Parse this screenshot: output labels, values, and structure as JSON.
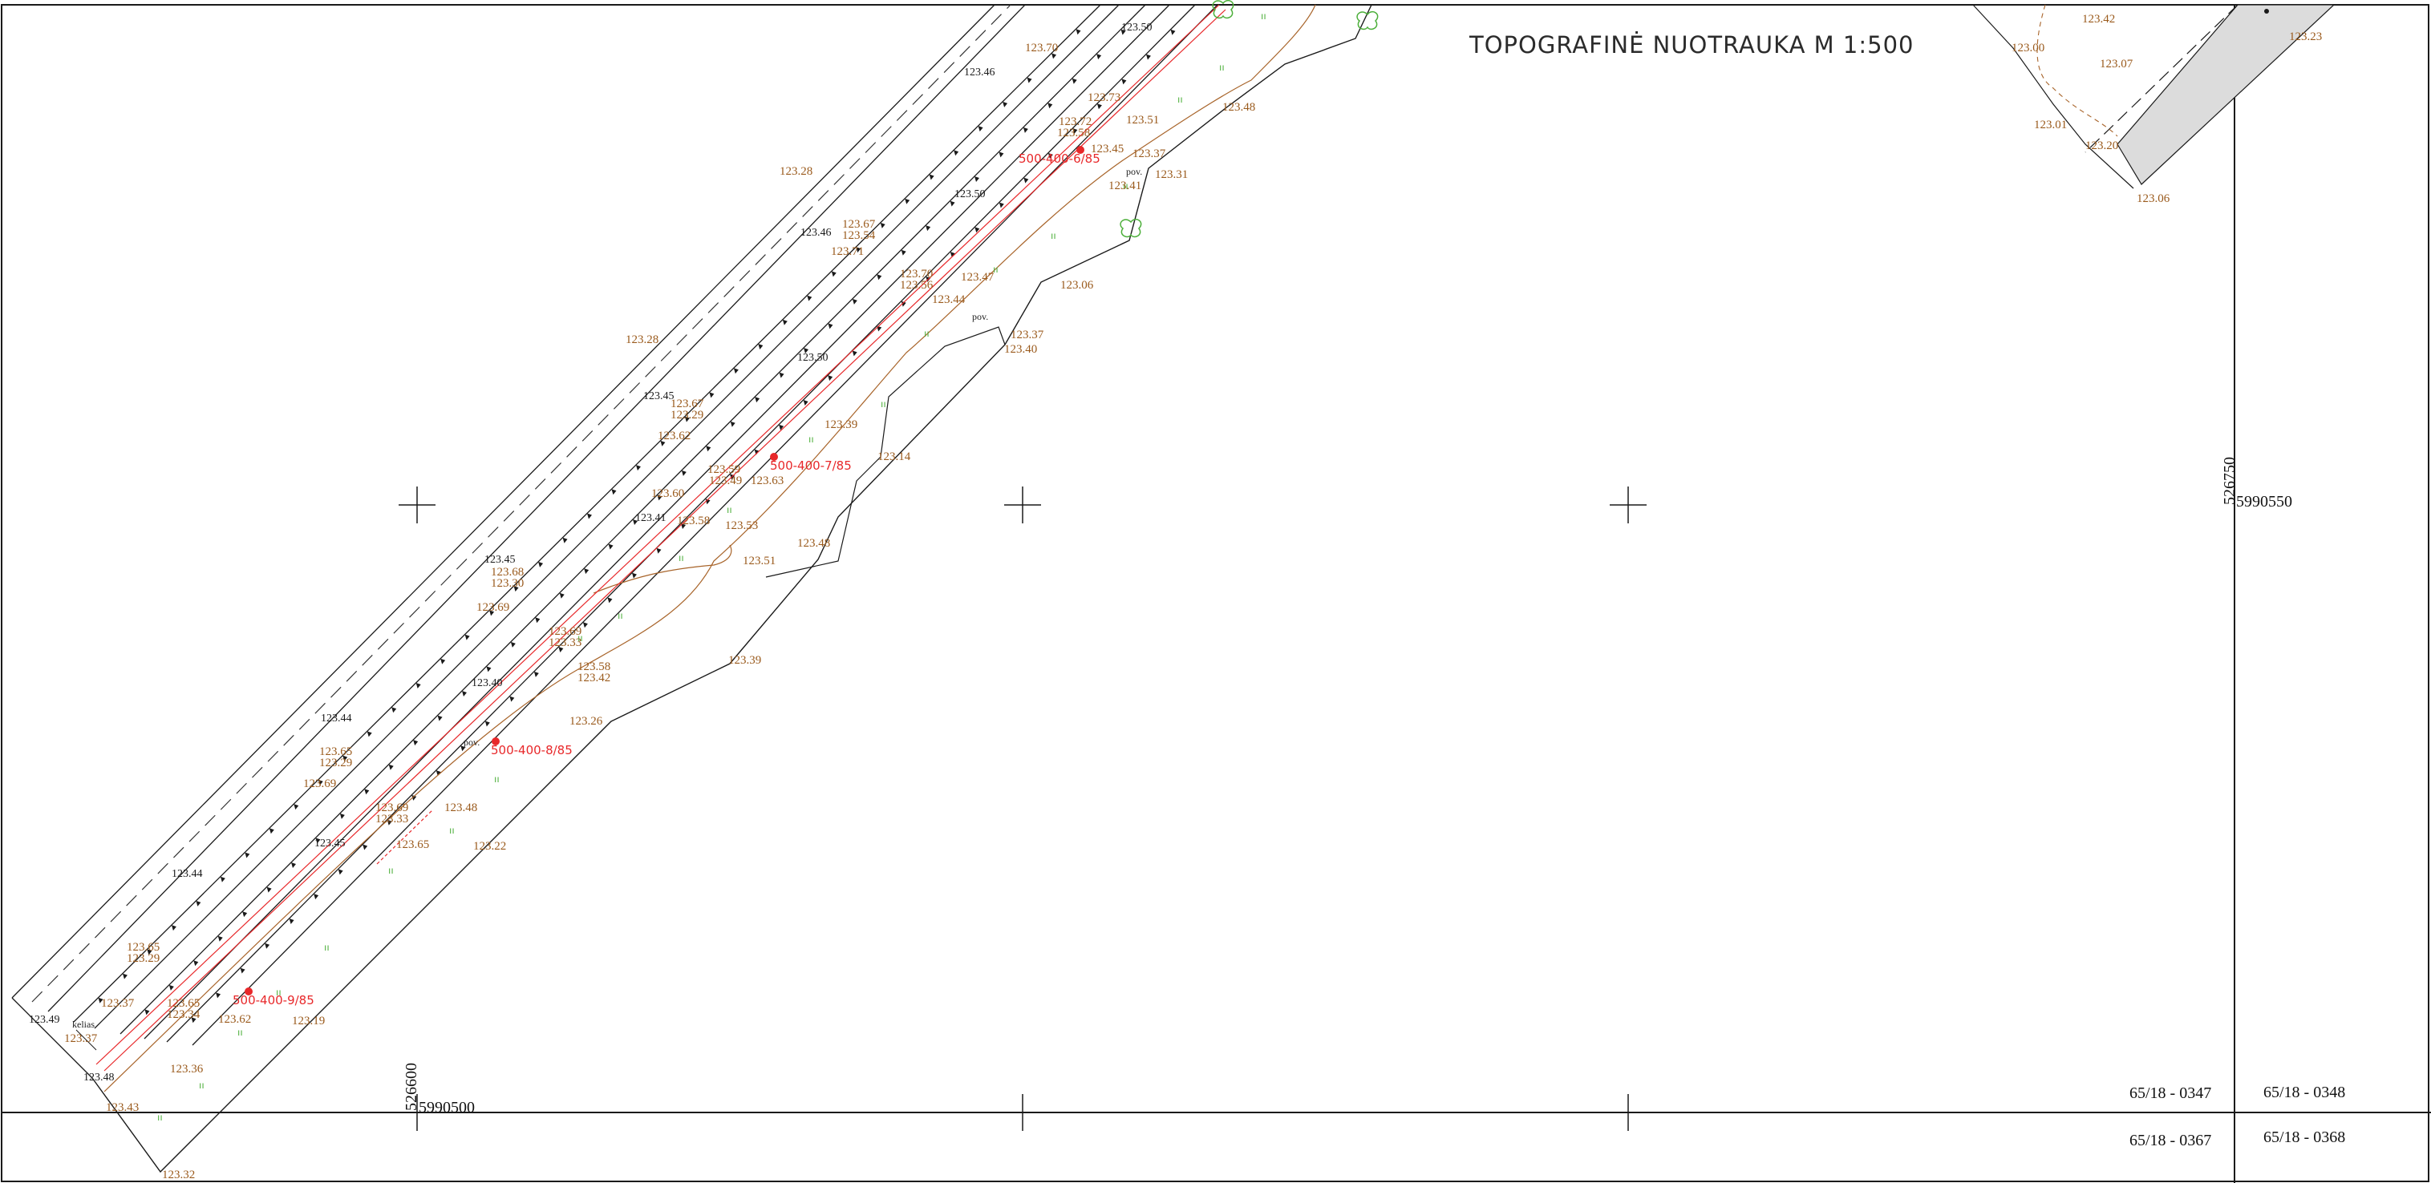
{
  "title": "TOPOGRAFINĖ NUOTRAUKA M 1:500",
  "colors": {
    "ink": "#1a1a1a",
    "elevation": "#9a5a1c",
    "survey": "#e8282a",
    "vegetation": "#4caf3a",
    "hatch": "#dcdcdc"
  },
  "grid": {
    "northing_label": "5990550",
    "easting_label": "526750",
    "bottom_northing": "5990500",
    "bottom_easting": "526600"
  },
  "sheets": [
    "65/18 - 0347",
    "65/18 - 0348",
    "65/18 - 0367",
    "65/18 - 0368"
  ],
  "survey_points": [
    "500-400-6/85",
    "500-400-7/85",
    "500-400-8/85",
    "500-400-9/85"
  ],
  "labels": {
    "road": "kelias",
    "pole": "pov."
  },
  "elevations_brown": [
    "123.28",
    "123.28",
    "123.70",
    "123.72",
    "123.58",
    "123.73",
    "123.51",
    "123.48",
    "123.45",
    "123.37",
    "123.41",
    "123.31",
    "123.67",
    "123.54",
    "123.71",
    "123.70",
    "123.56",
    "123.47",
    "123.44",
    "123.06",
    "123.37",
    "123.40",
    "123.67",
    "123.29",
    "123.39",
    "123.14",
    "123.62",
    "123.59",
    "123.49",
    "123.63",
    "123.60",
    "123.58",
    "123.53",
    "123.51",
    "123.48",
    "123.68",
    "123.30",
    "123.69",
    "123.69",
    "123.33",
    "123.58",
    "123.42",
    "123.39",
    "123.26",
    "123.65",
    "123.29",
    "123.69",
    "123.69",
    "123.33",
    "123.48",
    "123.65",
    "123.22",
    "123.65",
    "123.29",
    "123.37",
    "123.65",
    "123.34",
    "123.62",
    "123.19",
    "123.36",
    "123.37",
    "123.43",
    "123.32",
    "123.42",
    "123.00",
    "123.07",
    "123.01",
    "123.20",
    "123.06",
    "123.23"
  ],
  "elevations_black": [
    "123.50",
    "123.46",
    "123.50",
    "123.46",
    "123.50",
    "123.45",
    "123.41",
    "123.45",
    "123.40",
    "123.44",
    "123.45",
    "123.44",
    "123.49",
    "123.48"
  ]
}
